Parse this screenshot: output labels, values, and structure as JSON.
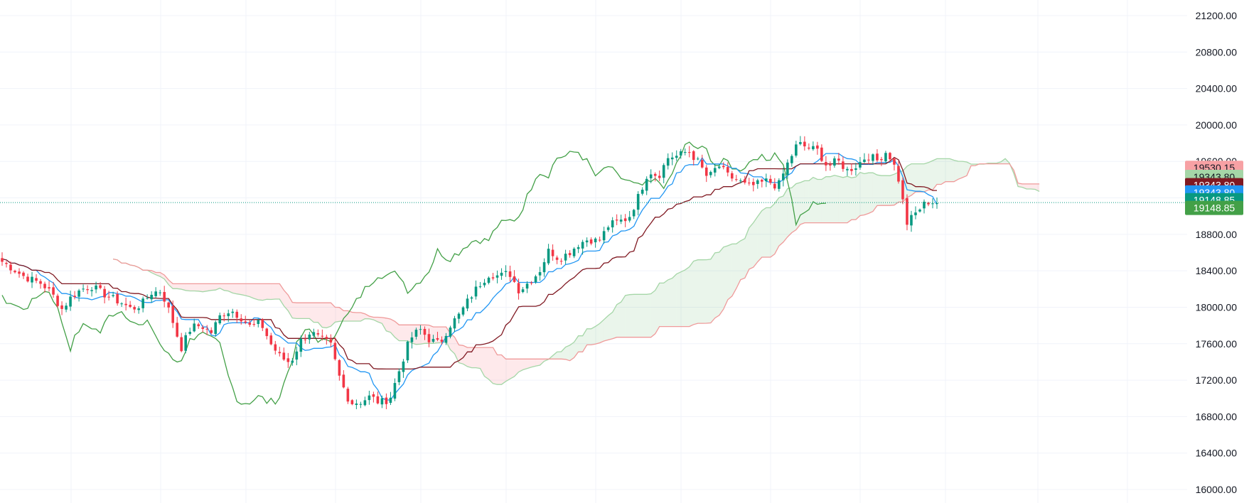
{
  "chart_data": {
    "type": "candlestick-ichimoku",
    "title": "",
    "xlabel": "",
    "ylabel": "",
    "ylim": [
      16000,
      21200
    ],
    "y_ticks": [
      "21200.00",
      "20800.00",
      "20400.00",
      "20000.00",
      "19600.00",
      "19200.00",
      "18800.00",
      "18400.00",
      "18000.00",
      "17600.00",
      "17200.00",
      "16800.00",
      "16400.00",
      "16000.00"
    ],
    "grid": true,
    "colors": {
      "up": "#089981",
      "down": "#f23645",
      "tenkan": "#2962ff",
      "kijun": "#801922",
      "chikou": "#43a047",
      "span_a": "#a5d6a7",
      "span_b": "#ef9a9a",
      "cloud_bull": "#43a04722",
      "cloud_bear": "#f2364520"
    },
    "price_tags": [
      {
        "name": "span-b",
        "label": "19530.15",
        "value": 19530.15,
        "bg": "#f7a1a4",
        "fg": "#131722"
      },
      {
        "name": "span-a",
        "label": "19343.80",
        "value": 19430,
        "bg": "#a5d6a7",
        "fg": "#131722"
      },
      {
        "name": "kijun",
        "label": "19343.80",
        "value": 19340,
        "bg": "#801922",
        "fg": "#ffffff"
      },
      {
        "name": "tenkan",
        "label": "19343.80",
        "value": 19260,
        "bg": "#2196f3",
        "fg": "#ffffff"
      },
      {
        "name": "last-price",
        "label": "19148.85",
        "value": 19175,
        "bg": "#089981",
        "fg": "#ffffff"
      },
      {
        "name": "chikou",
        "label": "19148.85",
        "value": 19090,
        "bg": "#43a047",
        "fg": "#ffffff"
      }
    ],
    "last_price_line": 19148.85,
    "close_path": [
      18500,
      18430,
      18350,
      18300,
      18260,
      18150,
      17980,
      18120,
      18200,
      18230,
      18160,
      18100,
      18050,
      17980,
      18030,
      18160,
      18180,
      17900,
      17550,
      17780,
      17800,
      17720,
      17920,
      17970,
      17890,
      17780,
      17830,
      17600,
      17450,
      17390,
      17630,
      17730,
      17650,
      17600,
      17200,
      16950,
      16960,
      17020,
      16950,
      17000,
      17330,
      17650,
      17760,
      17640,
      17600,
      17800,
      17920,
      18100,
      18250,
      18370,
      18340,
      18380,
      18180,
      18280,
      18390,
      18630,
      18530,
      18600,
      18700,
      18750,
      18720,
      18900,
      18940,
      18980,
      19220,
      19500,
      19440,
      19650,
      19660,
      19720,
      19590,
      19410,
      19560,
      19440,
      19390,
      19320,
      19350,
      19390,
      19320,
      19580,
      19800,
      19750,
      19720,
      19540,
      19610,
      19500,
      19560,
      19670,
      19610,
      19720,
      19480,
      18920,
      19050,
      19160,
      19148.85
    ],
    "candles_approx": 220
  }
}
